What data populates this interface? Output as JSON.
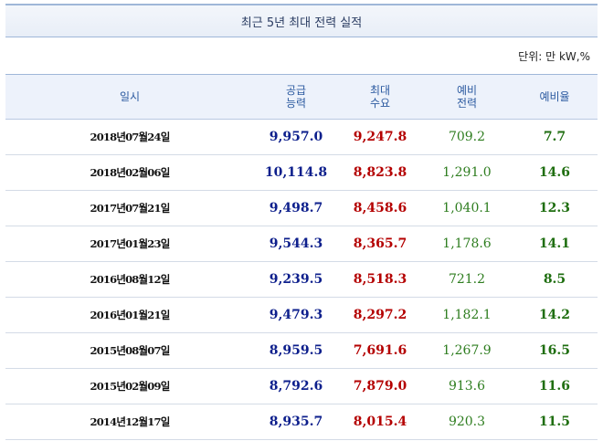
{
  "title": "최근 5년 최대 전력 실적",
  "unit": "단위: 만 kW,%",
  "headers": {
    "date": "일시",
    "supply": "공급\n능력",
    "peak": "최대\n수요",
    "reserve": "예비\n전력",
    "rate": "예비율"
  },
  "rows": [
    {
      "date": "2018년07월24일",
      "supply": "9,957.0",
      "peak": "9,247.8",
      "reserve": "709.2",
      "rate": "7.7"
    },
    {
      "date": "2018년02월06일",
      "supply": "10,114.8",
      "peak": "8,823.8",
      "reserve": "1,291.0",
      "rate": "14.6"
    },
    {
      "date": "2017년07월21일",
      "supply": "9,498.7",
      "peak": "8,458.6",
      "reserve": "1,040.1",
      "rate": "12.3"
    },
    {
      "date": "2017년01월23일",
      "supply": "9,544.3",
      "peak": "8,365.7",
      "reserve": "1,178.6",
      "rate": "14.1"
    },
    {
      "date": "2016년08월12일",
      "supply": "9,239.5",
      "peak": "8,518.3",
      "reserve": "721.2",
      "rate": "8.5"
    },
    {
      "date": "2016년01월21일",
      "supply": "9,479.3",
      "peak": "8,297.2",
      "reserve": "1,182.1",
      "rate": "14.2"
    },
    {
      "date": "2015년08월07일",
      "supply": "8,959.5",
      "peak": "7,691.6",
      "reserve": "1,267.9",
      "rate": "16.5"
    },
    {
      "date": "2015년02월09일",
      "supply": "8,792.6",
      "peak": "7,879.0",
      "reserve": "913.6",
      "rate": "11.6"
    },
    {
      "date": "2014년12월17일",
      "supply": "8,935.7",
      "peak": "8,015.4",
      "reserve": "920.3",
      "rate": "11.5"
    }
  ]
}
